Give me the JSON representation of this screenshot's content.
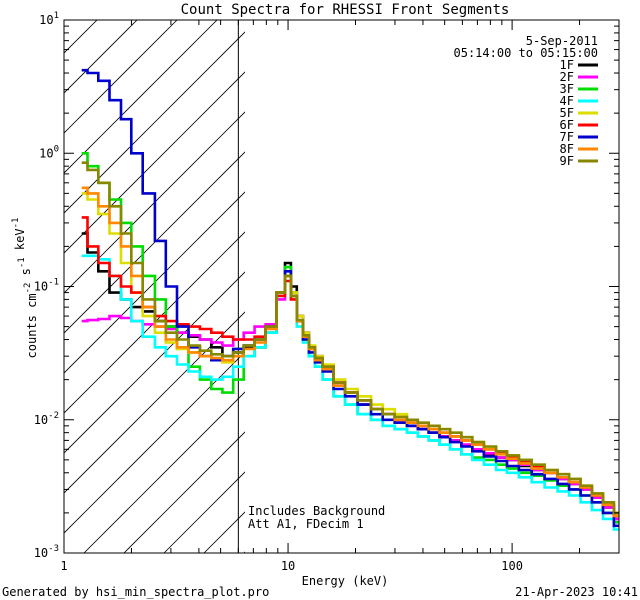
{
  "chart_data": {
    "type": "line",
    "title": "Count Spectra for RHESSI Front Segments",
    "xlabel": "Energy (keV)",
    "ylabel": "counts cm^-2 s^-1 keV^-1",
    "xscale": "log",
    "yscale": "log",
    "xlim": [
      1,
      300
    ],
    "ylim": [
      0.001,
      10
    ],
    "x_tick_labels": [
      {
        "value": 1,
        "label": "1"
      },
      {
        "value": 10,
        "label": "10"
      },
      {
        "value": 100,
        "label": "100"
      }
    ],
    "y_tick_labels": [
      {
        "value": 0.001,
        "base": "10",
        "exp": "-3"
      },
      {
        "value": 0.01,
        "base": "10",
        "exp": "-2"
      },
      {
        "value": 0.1,
        "base": "10",
        "exp": "-1"
      },
      {
        "value": 1,
        "base": "10",
        "exp": "0"
      },
      {
        "value": 10,
        "base": "10",
        "exp": "1"
      }
    ],
    "date": "5-Sep-2011",
    "time_range": "05:14:00 to 05:15:00",
    "annotations": [
      "Includes Background",
      "Att A1, FDecim 1"
    ],
    "shaded_region_keV": [
      1,
      6
    ],
    "footer_left": "Generated by hsi_min_spectra_plot.pro",
    "footer_right": "21-Apr-2023 10:41",
    "series": [
      {
        "name": "1F",
        "color": "#000000",
        "x": [
          1.2,
          1.35,
          1.5,
          1.7,
          1.9,
          2.1,
          2.4,
          2.7,
          3.0,
          3.4,
          3.8,
          4.3,
          4.8,
          5.4,
          6.0,
          6.7,
          7.5,
          8.4,
          9.4,
          10.0,
          10.6,
          11.3,
          12.0,
          12.8,
          13.6,
          15.0,
          17.0,
          19.0,
          22.0,
          25.0,
          28.0,
          32.0,
          36.0,
          40.0,
          45.0,
          50.0,
          56.0,
          63.0,
          70.0,
          80.0,
          90.0,
          100.0,
          115.0,
          130.0,
          150.0,
          170.0,
          190.0,
          215.0,
          240.0,
          270.0,
          300.0
        ],
        "y": [
          0.25,
          0.18,
          0.13,
          0.09,
          0.08,
          0.07,
          0.065,
          0.055,
          0.05,
          0.045,
          0.042,
          0.04,
          0.035,
          0.03,
          0.032,
          0.035,
          0.035,
          0.045,
          0.09,
          0.15,
          0.1,
          0.06,
          0.045,
          0.035,
          0.03,
          0.025,
          0.018,
          0.016,
          0.013,
          0.012,
          0.011,
          0.01,
          0.009,
          0.0085,
          0.008,
          0.0075,
          0.007,
          0.0065,
          0.006,
          0.0055,
          0.0052,
          0.005,
          0.0045,
          0.0042,
          0.004,
          0.0036,
          0.0033,
          0.003,
          0.0026,
          0.0022,
          0.0018
        ]
      },
      {
        "name": "2F",
        "color": "#ff00ff",
        "x": [
          1.2,
          1.35,
          1.5,
          1.7,
          1.9,
          2.1,
          2.4,
          2.7,
          3.0,
          3.4,
          3.8,
          4.3,
          4.8,
          5.4,
          6.0,
          6.7,
          7.5,
          8.4,
          9.4,
          10.0,
          10.6,
          11.3,
          12.0,
          12.8,
          13.6,
          15.0,
          17.0,
          19.0,
          22.0,
          25.0,
          28.0,
          32.0,
          36.0,
          40.0,
          45.0,
          50.0,
          56.0,
          63.0,
          70.0,
          80.0,
          90.0,
          100.0,
          115.0,
          130.0,
          150.0,
          170.0,
          190.0,
          215.0,
          240.0,
          270.0,
          300.0
        ],
        "y": [
          0.055,
          0.056,
          0.057,
          0.06,
          0.058,
          0.055,
          0.052,
          0.05,
          0.048,
          0.045,
          0.043,
          0.04,
          0.038,
          0.036,
          0.04,
          0.045,
          0.05,
          0.052,
          0.08,
          0.12,
          0.09,
          0.06,
          0.045,
          0.035,
          0.029,
          0.025,
          0.019,
          0.016,
          0.014,
          0.012,
          0.011,
          0.01,
          0.009,
          0.0085,
          0.008,
          0.0075,
          0.007,
          0.0065,
          0.006,
          0.0056,
          0.0052,
          0.005,
          0.0046,
          0.0042,
          0.004,
          0.0036,
          0.0033,
          0.003,
          0.0026,
          0.0022,
          0.0018
        ]
      },
      {
        "name": "3F",
        "color": "#00dd00",
        "x": [
          1.2,
          1.35,
          1.5,
          1.7,
          1.9,
          2.1,
          2.4,
          2.7,
          3.0,
          3.4,
          3.8,
          4.3,
          4.8,
          5.4,
          6.0,
          6.7,
          7.5,
          8.4,
          9.4,
          10.0,
          10.6,
          11.3,
          12.0,
          12.8,
          13.6,
          15.0,
          17.0,
          19.0,
          22.0,
          25.0,
          28.0,
          32.0,
          36.0,
          40.0,
          45.0,
          50.0,
          56.0,
          63.0,
          70.0,
          80.0,
          90.0,
          100.0,
          115.0,
          130.0,
          150.0,
          170.0,
          190.0,
          215.0,
          240.0,
          270.0,
          300.0
        ],
        "y": [
          1.0,
          0.8,
          0.6,
          0.45,
          0.3,
          0.2,
          0.12,
          0.08,
          0.05,
          0.035,
          0.025,
          0.02,
          0.017,
          0.016,
          0.02,
          0.03,
          0.035,
          0.045,
          0.09,
          0.14,
          0.09,
          0.055,
          0.04,
          0.03,
          0.025,
          0.02,
          0.015,
          0.013,
          0.011,
          0.01,
          0.009,
          0.0085,
          0.008,
          0.0075,
          0.007,
          0.0065,
          0.006,
          0.0055,
          0.0052,
          0.005,
          0.0046,
          0.0043,
          0.004,
          0.0038,
          0.0035,
          0.0032,
          0.003,
          0.0027,
          0.0024,
          0.002,
          0.0017
        ]
      },
      {
        "name": "4F",
        "color": "#00ffff",
        "x": [
          1.2,
          1.35,
          1.5,
          1.7,
          1.9,
          2.1,
          2.4,
          2.7,
          3.0,
          3.4,
          3.8,
          4.3,
          4.8,
          5.4,
          6.0,
          6.7,
          7.5,
          8.4,
          9.4,
          10.0,
          10.6,
          11.3,
          12.0,
          12.8,
          13.6,
          15.0,
          17.0,
          19.0,
          22.0,
          25.0,
          28.0,
          32.0,
          36.0,
          40.0,
          45.0,
          50.0,
          56.0,
          63.0,
          70.0,
          80.0,
          90.0,
          100.0,
          115.0,
          130.0,
          150.0,
          170.0,
          190.0,
          215.0,
          240.0,
          270.0,
          300.0
        ],
        "y": [
          0.17,
          0.17,
          0.16,
          0.12,
          0.08,
          0.055,
          0.042,
          0.035,
          0.03,
          0.026,
          0.023,
          0.021,
          0.02,
          0.021,
          0.025,
          0.03,
          0.035,
          0.045,
          0.085,
          0.13,
          0.085,
          0.05,
          0.038,
          0.03,
          0.025,
          0.02,
          0.015,
          0.013,
          0.011,
          0.01,
          0.009,
          0.0085,
          0.008,
          0.0075,
          0.007,
          0.0065,
          0.006,
          0.0055,
          0.005,
          0.0046,
          0.0042,
          0.004,
          0.0037,
          0.0034,
          0.0031,
          0.0029,
          0.0027,
          0.0024,
          0.0021,
          0.0018,
          0.0015
        ]
      },
      {
        "name": "5F",
        "color": "#dddd00",
        "x": [
          1.2,
          1.35,
          1.5,
          1.7,
          1.9,
          2.1,
          2.4,
          2.7,
          3.0,
          3.4,
          3.8,
          4.3,
          4.8,
          5.4,
          6.0,
          6.7,
          7.5,
          8.4,
          9.4,
          10.0,
          10.6,
          11.3,
          12.0,
          12.8,
          13.6,
          15.0,
          17.0,
          19.0,
          22.0,
          25.0,
          28.0,
          32.0,
          36.0,
          40.0,
          45.0,
          50.0,
          56.0,
          63.0,
          70.0,
          80.0,
          90.0,
          100.0,
          115.0,
          130.0,
          150.0,
          170.0,
          190.0,
          215.0,
          240.0,
          270.0,
          300.0
        ],
        "y": [
          0.5,
          0.45,
          0.35,
          0.25,
          0.15,
          0.09,
          0.06,
          0.045,
          0.038,
          0.034,
          0.032,
          0.03,
          0.028,
          0.027,
          0.03,
          0.036,
          0.04,
          0.05,
          0.09,
          0.13,
          0.09,
          0.06,
          0.045,
          0.036,
          0.03,
          0.026,
          0.02,
          0.017,
          0.015,
          0.013,
          0.012,
          0.011,
          0.01,
          0.0095,
          0.009,
          0.0085,
          0.008,
          0.0074,
          0.0068,
          0.0062,
          0.0058,
          0.0054,
          0.005,
          0.0046,
          0.0042,
          0.0039,
          0.0036,
          0.0032,
          0.0028,
          0.0024,
          0.002
        ]
      },
      {
        "name": "6F",
        "color": "#ff0000",
        "x": [
          1.2,
          1.35,
          1.5,
          1.7,
          1.9,
          2.1,
          2.4,
          2.7,
          3.0,
          3.4,
          3.8,
          4.3,
          4.8,
          5.4,
          6.0,
          6.7,
          7.5,
          8.4,
          9.4,
          10.0,
          10.6,
          11.3,
          12.0,
          12.8,
          13.6,
          15.0,
          17.0,
          19.0,
          22.0,
          25.0,
          28.0,
          32.0,
          36.0,
          40.0,
          45.0,
          50.0,
          56.0,
          63.0,
          70.0,
          80.0,
          90.0,
          100.0,
          115.0,
          130.0,
          150.0,
          170.0,
          190.0,
          215.0,
          240.0,
          270.0,
          300.0
        ],
        "y": [
          0.33,
          0.2,
          0.15,
          0.12,
          0.1,
          0.09,
          0.07,
          0.06,
          0.055,
          0.052,
          0.05,
          0.048,
          0.045,
          0.042,
          0.04,
          0.04,
          0.042,
          0.05,
          0.085,
          0.11,
          0.08,
          0.055,
          0.042,
          0.034,
          0.029,
          0.025,
          0.019,
          0.016,
          0.014,
          0.012,
          0.011,
          0.01,
          0.0095,
          0.009,
          0.0085,
          0.008,
          0.0075,
          0.007,
          0.0065,
          0.006,
          0.0056,
          0.0052,
          0.0048,
          0.0044,
          0.004,
          0.0037,
          0.0034,
          0.0031,
          0.0027,
          0.0023,
          0.0019
        ]
      },
      {
        "name": "7F",
        "color": "#0000cc",
        "x": [
          1.2,
          1.35,
          1.5,
          1.7,
          1.9,
          2.1,
          2.4,
          2.7,
          3.0,
          3.4,
          3.8,
          4.3,
          4.8,
          5.4,
          6.0,
          6.7,
          7.5,
          8.4,
          9.4,
          10.0,
          10.6,
          11.3,
          12.0,
          12.8,
          13.6,
          15.0,
          17.0,
          19.0,
          22.0,
          25.0,
          28.0,
          32.0,
          36.0,
          40.0,
          45.0,
          50.0,
          56.0,
          63.0,
          70.0,
          80.0,
          90.0,
          100.0,
          115.0,
          130.0,
          150.0,
          170.0,
          190.0,
          215.0,
          240.0,
          270.0,
          300.0
        ],
        "y": [
          4.2,
          4.0,
          3.5,
          2.5,
          1.8,
          1.0,
          0.5,
          0.22,
          0.1,
          0.05,
          0.035,
          0.03,
          0.028,
          0.03,
          0.034,
          0.036,
          0.04,
          0.05,
          0.09,
          0.13,
          0.085,
          0.055,
          0.04,
          0.032,
          0.027,
          0.023,
          0.017,
          0.015,
          0.013,
          0.011,
          0.01,
          0.0095,
          0.009,
          0.0085,
          0.008,
          0.0074,
          0.0068,
          0.0063,
          0.0058,
          0.0053,
          0.0049,
          0.0045,
          0.0042,
          0.0039,
          0.0036,
          0.0033,
          0.003,
          0.0027,
          0.0024,
          0.002,
          0.0016
        ]
      },
      {
        "name": "8F",
        "color": "#ff8800",
        "x": [
          1.2,
          1.35,
          1.5,
          1.7,
          1.9,
          2.1,
          2.4,
          2.7,
          3.0,
          3.4,
          3.8,
          4.3,
          4.8,
          5.4,
          6.0,
          6.7,
          7.5,
          8.4,
          9.4,
          10.0,
          10.6,
          11.3,
          12.0,
          12.8,
          13.6,
          15.0,
          17.0,
          19.0,
          22.0,
          25.0,
          28.0,
          32.0,
          36.0,
          40.0,
          45.0,
          50.0,
          56.0,
          63.0,
          70.0,
          80.0,
          90.0,
          100.0,
          115.0,
          130.0,
          150.0,
          170.0,
          190.0,
          215.0,
          240.0,
          270.0,
          300.0
        ],
        "y": [
          0.55,
          0.5,
          0.4,
          0.3,
          0.2,
          0.12,
          0.07,
          0.05,
          0.04,
          0.035,
          0.032,
          0.03,
          0.029,
          0.028,
          0.03,
          0.034,
          0.038,
          0.048,
          0.09,
          0.12,
          0.085,
          0.055,
          0.042,
          0.034,
          0.028,
          0.024,
          0.018,
          0.016,
          0.014,
          0.012,
          0.011,
          0.01,
          0.0095,
          0.009,
          0.0085,
          0.008,
          0.0075,
          0.007,
          0.0065,
          0.006,
          0.0055,
          0.0051,
          0.0047,
          0.0043,
          0.004,
          0.0037,
          0.0034,
          0.0031,
          0.0027,
          0.0023,
          0.0019
        ]
      },
      {
        "name": "9F",
        "color": "#888800",
        "x": [
          1.2,
          1.35,
          1.5,
          1.7,
          1.9,
          2.1,
          2.4,
          2.7,
          3.0,
          3.4,
          3.8,
          4.3,
          4.8,
          5.4,
          6.0,
          6.7,
          7.5,
          8.4,
          9.4,
          10.0,
          10.6,
          11.3,
          12.0,
          12.8,
          13.6,
          15.0,
          17.0,
          19.0,
          22.0,
          25.0,
          28.0,
          32.0,
          36.0,
          40.0,
          45.0,
          50.0,
          56.0,
          63.0,
          70.0,
          80.0,
          90.0,
          100.0,
          115.0,
          130.0,
          150.0,
          170.0,
          190.0,
          215.0,
          240.0,
          270.0,
          300.0
        ],
        "y": [
          0.85,
          0.75,
          0.6,
          0.4,
          0.25,
          0.15,
          0.08,
          0.055,
          0.045,
          0.04,
          0.036,
          0.033,
          0.031,
          0.03,
          0.032,
          0.036,
          0.04,
          0.05,
          0.09,
          0.12,
          0.085,
          0.056,
          0.043,
          0.035,
          0.029,
          0.025,
          0.019,
          0.016,
          0.014,
          0.012,
          0.011,
          0.0105,
          0.01,
          0.0095,
          0.009,
          0.0085,
          0.008,
          0.0074,
          0.0068,
          0.0063,
          0.0058,
          0.0054,
          0.005,
          0.0046,
          0.0042,
          0.0039,
          0.0036,
          0.0032,
          0.0028,
          0.0024,
          0.002
        ]
      }
    ]
  }
}
